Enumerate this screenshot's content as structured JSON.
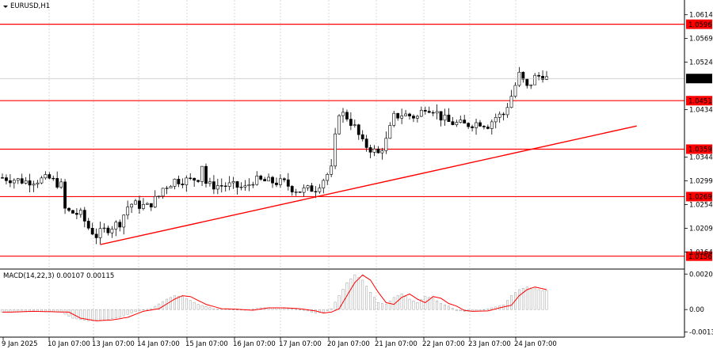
{
  "symbol_title": "EURUSD,H1",
  "indicator_label": "MACD(14,22,3) 0.00107 0.00115",
  "colors": {
    "level": "#ff0000",
    "candle": "#000000",
    "grid": "#c8c8c8",
    "hist": "#c0c0c0",
    "signal": "#ff0000",
    "current": "#000000"
  },
  "price_axis": {
    "ticks": [
      "1.0614",
      "1.0569",
      "1.0524",
      "1.0434",
      "1.0344",
      "1.0299",
      "1.0254",
      "1.0209",
      "1.0164"
    ],
    "ylim": [
      1.0142,
      1.063
    ]
  },
  "macd_axis": {
    "ticks": [
      "0.00205",
      "0.00",
      "-0.0013"
    ],
    "ylim": [
      -0.0015,
      0.0022
    ]
  },
  "time_axis": [
    "9 Jan 2025",
    "10 Jan 07:00",
    "13 Jan 07:00",
    "14 Jan 07:00",
    "15 Jan 07:00",
    "16 Jan 07:00",
    "17 Jan 07:00",
    "20 Jan 07:00",
    "21 Jan 07:00",
    "22 Jan 07:00",
    "23 Jan 07:00",
    "24 Jan 07:00"
  ],
  "levels": [
    {
      "label": "1.0596",
      "price": 1.0596
    },
    {
      "label": "1.0451",
      "price": 1.0451
    },
    {
      "label": "1.0359",
      "price": 1.0359
    },
    {
      "label": "1.0269",
      "price": 1.0269
    },
    {
      "label": "1.0156",
      "price": 1.0156
    }
  ],
  "current_price": {
    "label": "1.0493",
    "price": 1.0493
  },
  "trendline": {
    "from": {
      "bar": 25,
      "price": 1.0178
    },
    "to": {
      "bar": 162,
      "price": 1.0403
    }
  },
  "chart_data": {
    "type": "candlestick",
    "price_path": [
      [
        0,
        1.0305
      ],
      [
        6,
        1.0298
      ],
      [
        12,
        1.0303
      ],
      [
        15,
        1.029
      ],
      [
        16,
        1.0245
      ],
      [
        17,
        1.024
      ],
      [
        20,
        1.0235
      ],
      [
        22,
        1.021
      ],
      [
        24,
        1.0195
      ],
      [
        26,
        1.0205
      ],
      [
        30,
        1.022
      ],
      [
        32,
        1.025
      ],
      [
        33,
        1.0255
      ],
      [
        37,
        1.025
      ],
      [
        40,
        1.027
      ],
      [
        41,
        1.0285
      ],
      [
        44,
        1.03
      ],
      [
        48,
        1.03
      ],
      [
        50,
        1.0305
      ],
      [
        51,
        1.033
      ],
      [
        52,
        1.0295
      ],
      [
        53,
        1.029
      ],
      [
        58,
        1.029
      ],
      [
        62,
        1.0285
      ],
      [
        64,
        1.03
      ],
      [
        67,
        1.0298
      ],
      [
        72,
        1.0295
      ],
      [
        74,
        1.0285
      ],
      [
        76,
        1.028
      ],
      [
        80,
        1.0285
      ],
      [
        84,
        1.032
      ],
      [
        85,
        1.038
      ],
      [
        86,
        1.043
      ],
      [
        88,
        1.042
      ],
      [
        90,
        1.04
      ],
      [
        92,
        1.037
      ],
      [
        94,
        1.036
      ],
      [
        96,
        1.035
      ],
      [
        98,
        1.0375
      ],
      [
        100,
        1.042
      ],
      [
        102,
        1.0425
      ],
      [
        106,
        1.042
      ],
      [
        108,
        1.044
      ],
      [
        110,
        1.0435
      ],
      [
        112,
        1.042
      ],
      [
        114,
        1.041
      ],
      [
        118,
        1.0405
      ],
      [
        122,
        1.041
      ],
      [
        124,
        1.0405
      ],
      [
        126,
        1.042
      ],
      [
        128,
        1.0425
      ],
      [
        130,
        1.046
      ],
      [
        132,
        1.05
      ],
      [
        134,
        1.0475
      ],
      [
        136,
        1.0495
      ],
      [
        138,
        1.05
      ],
      [
        139,
        1.0493
      ]
    ],
    "macd_path": [
      [
        0,
        -0.00015
      ],
      [
        6,
        -0.0001
      ],
      [
        10,
        -0.00012
      ],
      [
        15,
        -0.00015
      ],
      [
        18,
        -0.0005
      ],
      [
        22,
        -0.00065
      ],
      [
        26,
        -0.0006
      ],
      [
        30,
        -0.00045
      ],
      [
        34,
        -0.0001
      ],
      [
        38,
        5e-05
      ],
      [
        42,
        0.0006
      ],
      [
        44,
        0.0008
      ],
      [
        46,
        0.00075
      ],
      [
        50,
        0.0003
      ],
      [
        54,
        5e-05
      ],
      [
        58,
        2e-05
      ],
      [
        62,
        -4e-05
      ],
      [
        66,
        0.0001
      ],
      [
        70,
        0.0001
      ],
      [
        74,
        5e-05
      ],
      [
        78,
        -8e-05
      ],
      [
        80,
        -0.0002
      ],
      [
        82,
        -0.00015
      ],
      [
        84,
        5e-05
      ],
      [
        86,
        0.0008
      ],
      [
        88,
        0.00155
      ],
      [
        90,
        0.002
      ],
      [
        92,
        0.0017
      ],
      [
        94,
        0.001
      ],
      [
        96,
        0.0004
      ],
      [
        98,
        0.0003
      ],
      [
        100,
        0.0007
      ],
      [
        102,
        0.0009
      ],
      [
        104,
        0.0006
      ],
      [
        106,
        0.0004
      ],
      [
        108,
        0.00075
      ],
      [
        110,
        0.00065
      ],
      [
        112,
        0.00035
      ],
      [
        114,
        0.0002
      ],
      [
        116,
        -5e-05
      ],
      [
        118,
        -0.0001
      ],
      [
        122,
        -8e-05
      ],
      [
        125,
        0.0001
      ],
      [
        128,
        0.00025
      ],
      [
        130,
        0.0008
      ],
      [
        132,
        0.00115
      ],
      [
        134,
        0.0013
      ],
      [
        136,
        0.0012
      ],
      [
        138,
        0.0011
      ]
    ]
  }
}
